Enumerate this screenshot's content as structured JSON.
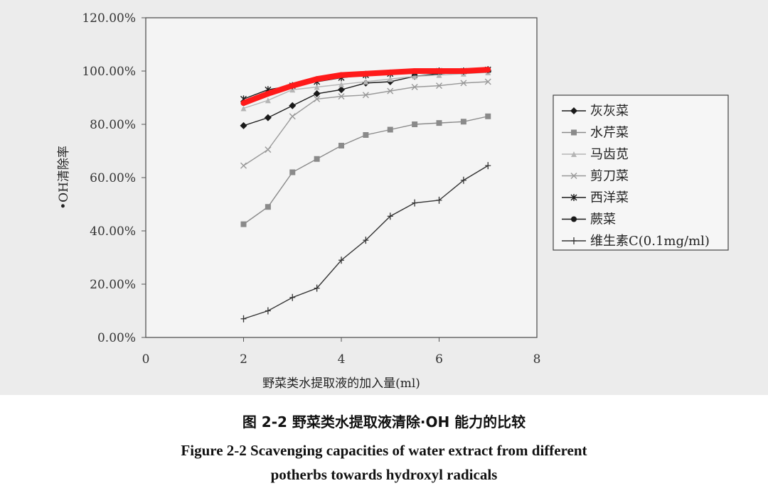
{
  "chart_data": {
    "type": "line",
    "title": "",
    "xlabel": "野菜类水提取液的加入量(ml)",
    "ylabel": "•OH清除率",
    "xlim": [
      0,
      8
    ],
    "ylim": [
      0,
      120
    ],
    "x_ticks": [
      "0",
      "2",
      "4",
      "6",
      "8"
    ],
    "y_ticks": [
      "0.00%",
      "20.00%",
      "40.00%",
      "60.00%",
      "80.00%",
      "100.00%",
      "120.00%"
    ],
    "grid": false,
    "legend_position": "right",
    "x": [
      2,
      2.5,
      3,
      3.5,
      4,
      4.5,
      5,
      5.5,
      6,
      6.5,
      7
    ],
    "series": [
      {
        "name": "灰灰菜",
        "marker": "diamond",
        "color": "#1a1a1a",
        "values": [
          79.5,
          82.5,
          87,
          91.5,
          93,
          95.5,
          96,
          98,
          99,
          99.5,
          100
        ]
      },
      {
        "name": "水芹菜",
        "marker": "square",
        "color": "#8a8a8a",
        "values": [
          42.5,
          49,
          62,
          67,
          72,
          76,
          78,
          80,
          80.5,
          81,
          83
        ]
      },
      {
        "name": "马齿苋",
        "marker": "triangle",
        "color": "#b5b5b5",
        "values": [
          86,
          89,
          93,
          94,
          95,
          96,
          97,
          98,
          98.5,
          99,
          99.5
        ]
      },
      {
        "name": "剪刀菜",
        "marker": "x",
        "color": "#999999",
        "values": [
          64.5,
          70.5,
          83,
          89.5,
          90.5,
          91,
          92.5,
          94,
          94.5,
          95.5,
          96
        ]
      },
      {
        "name": "西洋菜",
        "marker": "star",
        "color": "#1a1a1a",
        "values": [
          89.5,
          93,
          94.5,
          96,
          97.5,
          98.5,
          99,
          99.5,
          100,
          100,
          100.5
        ]
      },
      {
        "name": "蕨菜",
        "marker": "circle",
        "color": "#1a1a1a",
        "values": [
          88,
          91.5,
          94.5,
          97,
          98.5,
          99,
          99.5,
          100,
          100,
          100,
          100.5
        ]
      },
      {
        "name": "维生素C(0.1mg/ml)",
        "marker": "plus",
        "color": "#333333",
        "values": [
          7,
          10,
          15,
          18.5,
          29,
          36.5,
          45.5,
          50.5,
          51.5,
          59,
          64.5
        ]
      }
    ],
    "highlight_color": "#ff1a1a"
  },
  "caption": {
    "chinese": "图 2-2   野菜类水提取液清除·OH 能力的比较",
    "english_line1": "Figure 2-2 Scavenging capacities of water extract from different",
    "english_line2": "potherbs towards hydroxyl radicals"
  }
}
